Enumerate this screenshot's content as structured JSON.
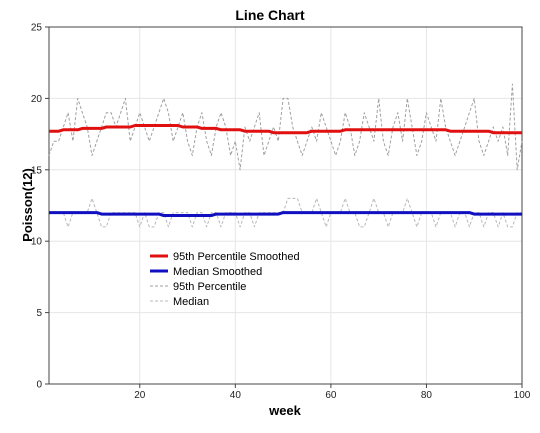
{
  "chart_data": {
    "type": "line",
    "title": "Line Chart",
    "xlabel": "week",
    "ylabel": "Poisson(12)",
    "xlim": [
      1,
      100
    ],
    "ylim": [
      0,
      25
    ],
    "x_ticks": [
      20,
      40,
      60,
      80,
      100
    ],
    "y_ticks": [
      0,
      5,
      10,
      15,
      20,
      25
    ],
    "grid": true,
    "legend_position": "center-left",
    "x": [
      1,
      2,
      3,
      4,
      5,
      6,
      7,
      8,
      9,
      10,
      11,
      12,
      13,
      14,
      15,
      16,
      17,
      18,
      19,
      20,
      21,
      22,
      23,
      24,
      25,
      26,
      27,
      28,
      29,
      30,
      31,
      32,
      33,
      34,
      35,
      36,
      37,
      38,
      39,
      40,
      41,
      42,
      43,
      44,
      45,
      46,
      47,
      48,
      49,
      50,
      51,
      52,
      53,
      54,
      55,
      56,
      57,
      58,
      59,
      60,
      61,
      62,
      63,
      64,
      65,
      66,
      67,
      68,
      69,
      70,
      71,
      72,
      73,
      74,
      75,
      76,
      77,
      78,
      79,
      80,
      81,
      82,
      83,
      84,
      85,
      86,
      87,
      88,
      89,
      90,
      91,
      92,
      93,
      94,
      95,
      96,
      97,
      98,
      99,
      100
    ],
    "series": [
      {
        "name": "95th Percentile Smoothed",
        "color": "#e01010",
        "style": "solid-thick",
        "values": [
          17.7,
          17.7,
          17.7,
          17.8,
          17.8,
          17.8,
          17.8,
          17.9,
          17.9,
          17.9,
          17.9,
          17.9,
          18.0,
          18.0,
          18.0,
          18.0,
          18.0,
          18.0,
          18.1,
          18.1,
          18.1,
          18.1,
          18.1,
          18.1,
          18.1,
          18.1,
          18.1,
          18.1,
          18.0,
          18.0,
          18.0,
          18.0,
          17.9,
          17.9,
          17.9,
          17.9,
          17.8,
          17.8,
          17.8,
          17.8,
          17.8,
          17.7,
          17.7,
          17.7,
          17.7,
          17.7,
          17.7,
          17.6,
          17.6,
          17.6,
          17.6,
          17.6,
          17.6,
          17.6,
          17.6,
          17.7,
          17.7,
          17.7,
          17.7,
          17.7,
          17.7,
          17.7,
          17.8,
          17.8,
          17.8,
          17.8,
          17.8,
          17.8,
          17.8,
          17.8,
          17.8,
          17.8,
          17.8,
          17.8,
          17.8,
          17.8,
          17.8,
          17.8,
          17.8,
          17.8,
          17.8,
          17.8,
          17.8,
          17.8,
          17.7,
          17.7,
          17.7,
          17.7,
          17.7,
          17.7,
          17.7,
          17.7,
          17.7,
          17.6,
          17.6,
          17.6,
          17.6,
          17.6,
          17.6,
          17.6
        ]
      },
      {
        "name": "Median Smoothed",
        "color": "#1010c0",
        "style": "solid-thick",
        "values": [
          12.0,
          12.0,
          12.0,
          12.0,
          12.0,
          12.0,
          12.0,
          12.0,
          12.0,
          12.0,
          12.0,
          11.9,
          11.9,
          11.9,
          11.9,
          11.9,
          11.9,
          11.9,
          11.9,
          11.9,
          11.9,
          11.9,
          11.9,
          11.9,
          11.8,
          11.8,
          11.8,
          11.8,
          11.8,
          11.8,
          11.8,
          11.8,
          11.8,
          11.8,
          11.8,
          11.9,
          11.9,
          11.9,
          11.9,
          11.9,
          11.9,
          11.9,
          11.9,
          11.9,
          11.9,
          11.9,
          11.9,
          11.9,
          11.9,
          12.0,
          12.0,
          12.0,
          12.0,
          12.0,
          12.0,
          12.0,
          12.0,
          12.0,
          12.0,
          12.0,
          12.0,
          12.0,
          12.0,
          12.0,
          12.0,
          12.0,
          12.0,
          12.0,
          12.0,
          12.0,
          12.0,
          12.0,
          12.0,
          12.0,
          12.0,
          12.0,
          12.0,
          12.0,
          12.0,
          12.0,
          12.0,
          12.0,
          12.0,
          12.0,
          12.0,
          12.0,
          12.0,
          12.0,
          12.0,
          11.9,
          11.9,
          11.9,
          11.9,
          11.9,
          11.9,
          11.9,
          11.9,
          11.9,
          11.9,
          11.9
        ]
      },
      {
        "name": "95th Percentile",
        "color": "#a0a0a0",
        "style": "dashed-thin",
        "values": [
          16,
          17,
          17,
          18,
          19,
          17,
          20,
          19,
          18,
          16,
          17,
          18,
          19,
          19,
          18,
          19,
          20,
          17,
          18,
          19,
          18,
          17,
          18,
          19,
          20,
          19,
          17,
          18,
          19,
          17,
          16,
          18,
          19,
          17,
          16,
          18,
          19,
          18,
          16,
          17,
          15,
          18,
          17,
          18,
          19,
          16,
          17,
          18,
          17,
          20,
          20,
          18,
          17,
          16,
          17,
          18,
          17,
          19,
          18,
          17,
          16,
          17,
          19,
          18,
          16,
          17,
          19,
          18,
          17,
          20,
          17,
          16,
          18,
          19,
          17,
          20,
          18,
          16,
          17,
          19,
          18,
          17,
          20,
          18,
          17,
          16,
          17,
          18,
          19,
          20,
          17,
          16,
          17,
          18,
          17,
          18,
          16,
          21,
          15,
          17
        ]
      },
      {
        "name": "Median",
        "color": "#b8b8b8",
        "style": "dashed-thin",
        "values": [
          12,
          12,
          12,
          12,
          11,
          12,
          12,
          12,
          12,
          13,
          12,
          11,
          11,
          12,
          12,
          12,
          12,
          12,
          12,
          11,
          12,
          11,
          11,
          12,
          12,
          11,
          12,
          12,
          12,
          12,
          11,
          12,
          12,
          11,
          12,
          12,
          11,
          12,
          12,
          12,
          11,
          12,
          12,
          11,
          12,
          12,
          12,
          12,
          12,
          12,
          13,
          13,
          13,
          12,
          12,
          12,
          13,
          12,
          11,
          12,
          12,
          12,
          13,
          12,
          12,
          11,
          11,
          12,
          13,
          12,
          12,
          11,
          12,
          12,
          12,
          13,
          12,
          11,
          12,
          12,
          12,
          11,
          12,
          12,
          12,
          11,
          12,
          12,
          11,
          12,
          12,
          11,
          12,
          12,
          11,
          12,
          11,
          11,
          12,
          12
        ]
      }
    ]
  }
}
